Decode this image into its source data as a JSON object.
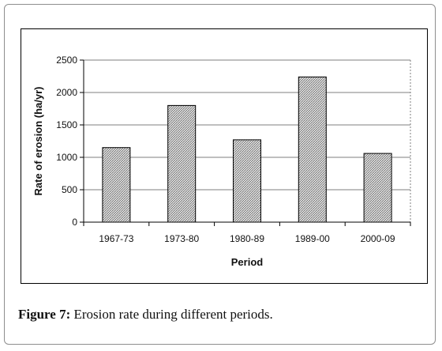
{
  "chart_data": {
    "type": "bar",
    "categories": [
      "1967-73",
      "1973-80",
      "1980-89",
      "1989-00",
      "2000-09"
    ],
    "values": [
      1150,
      1800,
      1270,
      2240,
      1060
    ],
    "title": "",
    "xlabel": "Period",
    "ylabel": "Rate of erosion (ha/yr)",
    "ylim": [
      0,
      2500
    ],
    "yticks": [
      0,
      500,
      1000,
      1500,
      2000,
      2500
    ],
    "grid": true,
    "legend": "none",
    "bar_fill": "hatched-gray"
  },
  "caption": {
    "label": "Figure 7:",
    "text": " Erosion rate during different periods."
  },
  "colors": {
    "frame_border": "#8e8e8e",
    "gridline": "#7f7f7f",
    "bar_stroke": "#000000"
  }
}
